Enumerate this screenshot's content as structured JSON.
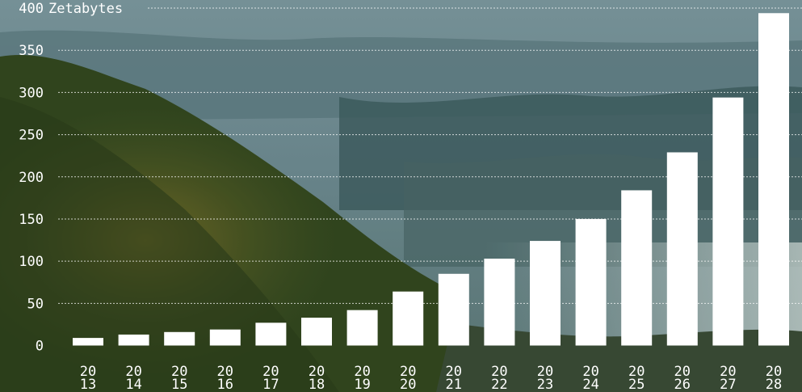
{
  "chart_data": {
    "type": "bar",
    "title": "",
    "xlabel": "",
    "ylabel": "",
    "unit_label": "Zetabytes",
    "categories": [
      "2013",
      "2014",
      "2015",
      "2016",
      "2017",
      "2018",
      "2019",
      "2020",
      "2021",
      "2022",
      "2023",
      "2024",
      "2025",
      "2026",
      "2027",
      "2028"
    ],
    "values": [
      9,
      13,
      16,
      19,
      27,
      33,
      42,
      64,
      85,
      103,
      124,
      150,
      184,
      229,
      294,
      394
    ],
    "ylim": [
      0,
      400
    ],
    "yticks": [
      0,
      50,
      100,
      150,
      200,
      250,
      300,
      350,
      400
    ],
    "grid": true,
    "bar_color": "#ffffff",
    "grid_color": "#ffffff"
  }
}
